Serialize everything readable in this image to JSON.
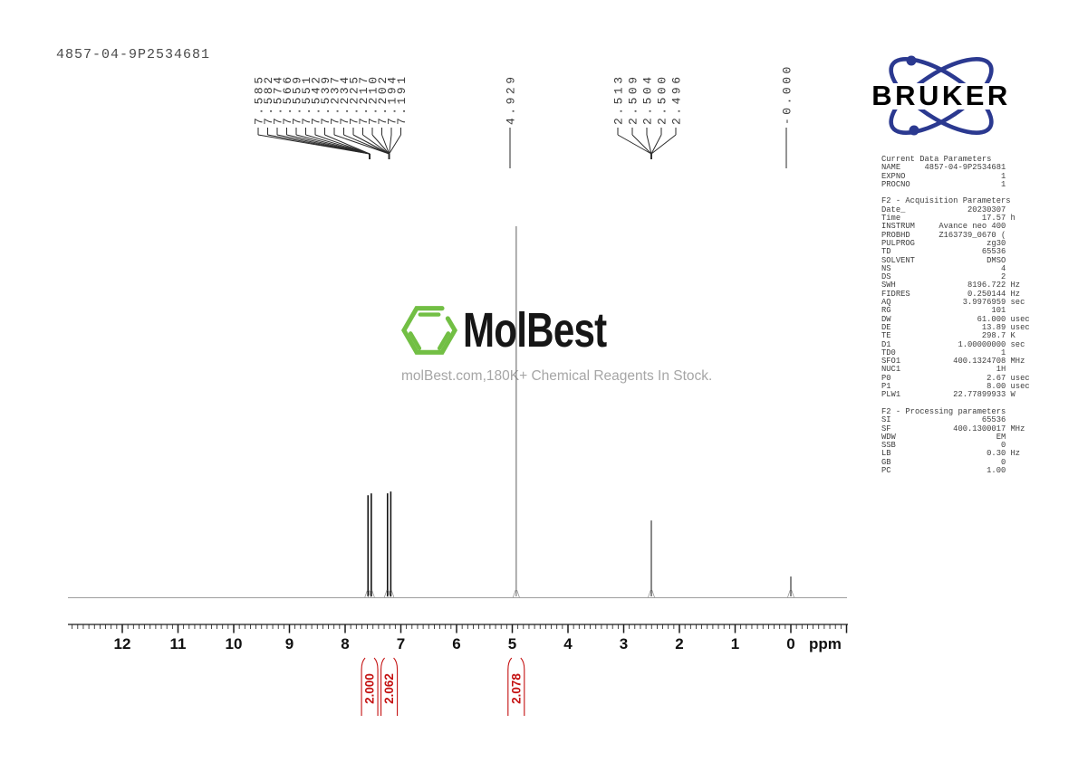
{
  "title": "4857-04-9P2534681",
  "watermark": {
    "brand": "MolBest",
    "tagline": "molBest.com,180K+ Chemical Reagents In Stock.",
    "hexagon_color": "#72bf44",
    "brand_color": "#161616",
    "tagline_color": "#a6a6a6"
  },
  "bruker": {
    "label": "BRUKER",
    "orbit_color": "#2b3990",
    "text_color": "#000000"
  },
  "params": {
    "sections": [
      {
        "header": "Current Data Parameters",
        "rows": [
          [
            "NAME",
            "4857-04-9P2534681",
            ""
          ],
          [
            "EXPNO",
            "1",
            ""
          ],
          [
            "PROCNO",
            "1",
            ""
          ]
        ]
      },
      {
        "header": "F2 - Acquisition Parameters",
        "rows": [
          [
            "Date_",
            "20230307",
            ""
          ],
          [
            "Time",
            "17.57",
            "h"
          ],
          [
            "INSTRUM",
            "Avance neo 400",
            ""
          ],
          [
            "PROBHD",
            "Z163739_0670 (",
            ""
          ],
          [
            "PULPROG",
            "zg30",
            ""
          ],
          [
            "TD",
            "65536",
            ""
          ],
          [
            "SOLVENT",
            "DMSO",
            ""
          ],
          [
            "NS",
            "4",
            ""
          ],
          [
            "DS",
            "2",
            ""
          ],
          [
            "SWH",
            "8196.722",
            "Hz"
          ],
          [
            "FIDRES",
            "0.250144",
            "Hz"
          ],
          [
            "AQ",
            "3.9976959",
            "sec"
          ],
          [
            "RG",
            "101",
            ""
          ],
          [
            "DW",
            "61.000",
            "usec"
          ],
          [
            "DE",
            "13.89",
            "usec"
          ],
          [
            "TE",
            "298.7",
            "K"
          ],
          [
            "D1",
            "1.00000000",
            "sec"
          ],
          [
            "TD0",
            "1",
            ""
          ],
          [
            "SFO1",
            "400.1324708",
            "MHz"
          ],
          [
            "NUC1",
            "1H",
            ""
          ],
          [
            "P0",
            "2.67",
            "usec"
          ],
          [
            "P1",
            "8.00",
            "usec"
          ],
          [
            "PLW1",
            "22.77899933",
            "W"
          ]
        ]
      },
      {
        "header": "F2 - Processing parameters",
        "rows": [
          [
            "SI",
            "65536",
            ""
          ],
          [
            "SF",
            "400.1300017",
            "MHz"
          ],
          [
            "WDW",
            "EM",
            ""
          ],
          [
            "SSB",
            "0",
            ""
          ],
          [
            "LB",
            "0.30",
            "Hz"
          ],
          [
            "GB",
            "0",
            ""
          ],
          [
            "PC",
            "1.00",
            ""
          ]
        ]
      }
    ]
  },
  "chart_data": {
    "type": "line",
    "subtype": "1H-NMR-spectrum",
    "title": "4857-04-9P2534681",
    "xlabel": "ppm",
    "ylabel": "",
    "xlim": [
      13.0,
      -1.0
    ],
    "x_ticks": [
      12,
      11,
      10,
      9,
      8,
      7,
      6,
      5,
      4,
      3,
      2,
      1,
      0
    ],
    "grid": false,
    "peak_label_groups": [
      {
        "labels": [
          "7.585",
          "7.582",
          "7.574",
          "7.566",
          "7.559",
          "7.551",
          "7.542",
          "7.539"
        ],
        "converge_ppm": 7.56
      },
      {
        "labels": [
          "7.237",
          "7.234",
          "7.225",
          "7.217",
          "7.210",
          "7.202",
          "7.194",
          "7.191"
        ],
        "converge_ppm": 7.21
      },
      {
        "labels": [
          "4.929"
        ],
        "converge_ppm": 4.929
      },
      {
        "labels": [
          "2.513",
          "2.509",
          "2.504",
          "2.500",
          "2.496"
        ],
        "converge_ppm": 2.504
      },
      {
        "labels": [
          "-0.000"
        ],
        "converge_ppm": 0.0
      }
    ],
    "peaks": [
      {
        "ppm": 7.56,
        "rel_intensity": 0.28,
        "multiplicity": "doublet"
      },
      {
        "ppm": 7.21,
        "rel_intensity": 0.285,
        "multiplicity": "doublet"
      },
      {
        "ppm": 4.929,
        "rel_intensity": 1.0,
        "multiplicity": "singlet"
      },
      {
        "ppm": 2.504,
        "rel_intensity": 0.207,
        "multiplicity": "multiplet"
      },
      {
        "ppm": 0.0,
        "rel_intensity": 0.056,
        "multiplicity": "singlet"
      }
    ],
    "integrals": [
      {
        "value": "2.000",
        "ppm": 7.56
      },
      {
        "value": "2.062",
        "ppm": 7.21
      },
      {
        "value": "2.078",
        "ppm": 4.93
      }
    ],
    "integral_color": "#c41111",
    "trace_color": "#3a3a3a"
  }
}
